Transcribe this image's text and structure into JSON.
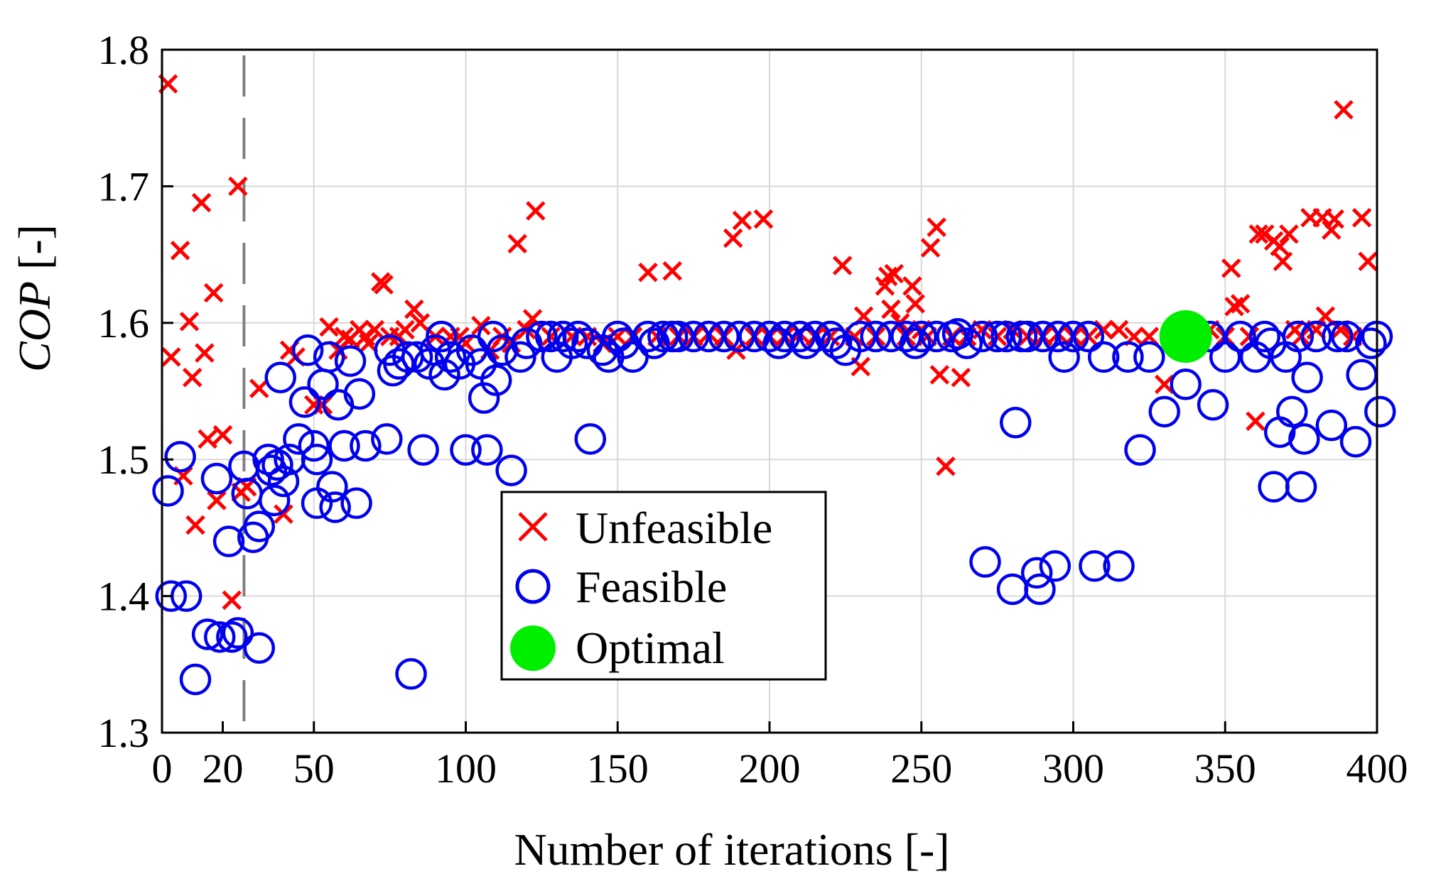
{
  "chart_data": {
    "type": "scatter",
    "title": "",
    "xlabel": "Number of iterations [-]",
    "ylabel_italic": "COP",
    "ylabel_suffix": " [-]",
    "xlim": [
      0,
      400
    ],
    "ylim": [
      1.3,
      1.8
    ],
    "xticks": [
      0,
      20,
      50,
      100,
      150,
      200,
      250,
      300,
      350,
      400
    ],
    "xtick_labels": [
      "0",
      "20",
      "50",
      "100",
      "150",
      "200",
      "250",
      "300",
      "350",
      "400"
    ],
    "yticks": [
      1.3,
      1.4,
      1.5,
      1.6,
      1.7,
      1.8
    ],
    "ytick_labels": [
      "1.3",
      "1.4",
      "1.5",
      "1.6",
      "1.7",
      "1.8"
    ],
    "grid": true,
    "vline_x": 27,
    "legend_position": "center",
    "colors": {
      "unfeasible": "#ff0000",
      "feasible": "#0000ee",
      "optimal": "#00ee00",
      "vline": "#808080",
      "grid": "#d9d9d9"
    },
    "series": [
      {
        "name": "Unfeasible",
        "marker": "x",
        "points": [
          [
            2,
            1.775
          ],
          [
            3,
            1.575
          ],
          [
            6,
            1.653
          ],
          [
            7,
            1.488
          ],
          [
            9,
            1.601
          ],
          [
            10,
            1.56
          ],
          [
            11,
            1.452
          ],
          [
            13,
            1.688
          ],
          [
            14,
            1.578
          ],
          [
            15,
            1.515
          ],
          [
            17,
            1.622
          ],
          [
            18,
            1.47
          ],
          [
            20,
            1.518
          ],
          [
            23,
            1.397
          ],
          [
            25,
            1.7
          ],
          [
            26,
            1.476
          ],
          [
            28,
            1.48
          ],
          [
            32,
            1.552
          ],
          [
            40,
            1.46
          ],
          [
            42,
            1.58
          ],
          [
            44,
            1.575
          ],
          [
            50,
            1.54
          ],
          [
            53,
            1.54
          ],
          [
            55,
            1.597
          ],
          [
            58,
            1.58
          ],
          [
            60,
            1.59
          ],
          [
            62,
            1.588
          ],
          [
            65,
            1.595
          ],
          [
            67,
            1.59
          ],
          [
            68,
            1.585
          ],
          [
            70,
            1.595
          ],
          [
            72,
            1.63
          ],
          [
            73,
            1.628
          ],
          [
            75,
            1.59
          ],
          [
            78,
            1.59
          ],
          [
            80,
            1.595
          ],
          [
            83,
            1.61
          ],
          [
            85,
            1.6
          ],
          [
            90,
            1.59
          ],
          [
            95,
            1.59
          ],
          [
            98,
            1.59
          ],
          [
            100,
            1.585
          ],
          [
            105,
            1.598
          ],
          [
            108,
            1.58
          ],
          [
            112,
            1.59
          ],
          [
            115,
            1.585
          ],
          [
            117,
            1.658
          ],
          [
            120,
            1.595
          ],
          [
            122,
            1.603
          ],
          [
            123,
            1.682
          ],
          [
            128,
            1.59
          ],
          [
            135,
            1.59
          ],
          [
            140,
            1.59
          ],
          [
            145,
            1.585
          ],
          [
            150,
            1.59
          ],
          [
            155,
            1.59
          ],
          [
            160,
            1.637
          ],
          [
            163,
            1.59
          ],
          [
            168,
            1.638
          ],
          [
            170,
            1.59
          ],
          [
            175,
            1.59
          ],
          [
            180,
            1.592
          ],
          [
            185,
            1.59
          ],
          [
            188,
            1.662
          ],
          [
            189,
            1.58
          ],
          [
            191,
            1.675
          ],
          [
            195,
            1.59
          ],
          [
            198,
            1.676
          ],
          [
            200,
            1.59
          ],
          [
            205,
            1.59
          ],
          [
            210,
            1.592
          ],
          [
            215,
            1.59
          ],
          [
            220,
            1.59
          ],
          [
            224,
            1.642
          ],
          [
            228,
            1.59
          ],
          [
            230,
            1.568
          ],
          [
            231,
            1.605
          ],
          [
            235,
            1.59
          ],
          [
            238,
            1.627
          ],
          [
            239,
            1.634
          ],
          [
            240,
            1.61
          ],
          [
            241,
            1.636
          ],
          [
            243,
            1.6
          ],
          [
            245,
            1.59
          ],
          [
            247,
            1.627
          ],
          [
            248,
            1.614
          ],
          [
            250,
            1.595
          ],
          [
            252,
            1.59
          ],
          [
            253,
            1.655
          ],
          [
            255,
            1.67
          ],
          [
            256,
            1.562
          ],
          [
            258,
            1.495
          ],
          [
            260,
            1.59
          ],
          [
            263,
            1.56
          ],
          [
            265,
            1.59
          ],
          [
            270,
            1.595
          ],
          [
            275,
            1.59
          ],
          [
            280,
            1.595
          ],
          [
            285,
            1.59
          ],
          [
            290,
            1.59
          ],
          [
            295,
            1.592
          ],
          [
            300,
            1.59
          ],
          [
            305,
            1.59
          ],
          [
            310,
            1.595
          ],
          [
            315,
            1.595
          ],
          [
            320,
            1.59
          ],
          [
            325,
            1.59
          ],
          [
            330,
            1.555
          ],
          [
            335,
            1.59
          ],
          [
            340,
            1.59
          ],
          [
            345,
            1.595
          ],
          [
            350,
            1.59
          ],
          [
            352,
            1.64
          ],
          [
            353,
            1.612
          ],
          [
            355,
            1.614
          ],
          [
            358,
            1.59
          ],
          [
            360,
            1.528
          ],
          [
            361,
            1.665
          ],
          [
            363,
            1.665
          ],
          [
            366,
            1.66
          ],
          [
            368,
            1.656
          ],
          [
            369,
            1.645
          ],
          [
            371,
            1.665
          ],
          [
            373,
            1.595
          ],
          [
            375,
            1.59
          ],
          [
            378,
            1.677
          ],
          [
            380,
            1.595
          ],
          [
            382,
            1.677
          ],
          [
            383,
            1.605
          ],
          [
            385,
            1.668
          ],
          [
            386,
            1.676
          ],
          [
            388,
            1.595
          ],
          [
            389,
            1.756
          ],
          [
            392,
            1.59
          ],
          [
            395,
            1.677
          ],
          [
            397,
            1.645
          ]
        ]
      },
      {
        "name": "Feasible",
        "marker": "o",
        "points": [
          [
            2,
            1.477
          ],
          [
            3,
            1.4
          ],
          [
            6,
            1.502
          ],
          [
            8,
            1.4
          ],
          [
            11,
            1.339
          ],
          [
            15,
            1.372
          ],
          [
            18,
            1.486
          ],
          [
            19,
            1.37
          ],
          [
            22,
            1.44
          ],
          [
            23,
            1.37
          ],
          [
            25,
            1.373
          ],
          [
            27,
            1.495
          ],
          [
            28,
            1.475
          ],
          [
            30,
            1.443
          ],
          [
            32,
            1.451
          ],
          [
            32,
            1.362
          ],
          [
            35,
            1.5
          ],
          [
            36,
            1.492
          ],
          [
            37,
            1.47
          ],
          [
            38,
            1.496
          ],
          [
            39,
            1.56
          ],
          [
            40,
            1.484
          ],
          [
            42,
            1.5
          ],
          [
            45,
            1.515
          ],
          [
            47,
            1.542
          ],
          [
            48,
            1.58
          ],
          [
            50,
            1.51
          ],
          [
            51,
            1.5
          ],
          [
            51,
            1.468
          ],
          [
            53,
            1.555
          ],
          [
            55,
            1.575
          ],
          [
            56,
            1.48
          ],
          [
            57,
            1.465
          ],
          [
            58,
            1.54
          ],
          [
            60,
            1.51
          ],
          [
            62,
            1.572
          ],
          [
            64,
            1.468
          ],
          [
            65,
            1.548
          ],
          [
            67,
            1.51
          ],
          [
            74,
            1.515
          ],
          [
            75,
            1.58
          ],
          [
            76,
            1.565
          ],
          [
            78,
            1.57
          ],
          [
            81,
            1.575
          ],
          [
            82,
            1.343
          ],
          [
            84,
            1.575
          ],
          [
            86,
            1.507
          ],
          [
            88,
            1.57
          ],
          [
            90,
            1.58
          ],
          [
            92,
            1.59
          ],
          [
            93,
            1.562
          ],
          [
            95,
            1.575
          ],
          [
            98,
            1.57
          ],
          [
            100,
            1.507
          ],
          [
            102,
            1.58
          ],
          [
            105,
            1.57
          ],
          [
            106,
            1.545
          ],
          [
            107,
            1.507
          ],
          [
            109,
            1.59
          ],
          [
            110,
            1.558
          ],
          [
            112,
            1.58
          ],
          [
            115,
            1.492
          ],
          [
            118,
            1.575
          ],
          [
            120,
            1.585
          ],
          [
            125,
            1.59
          ],
          [
            128,
            1.59
          ],
          [
            130,
            1.575
          ],
          [
            132,
            1.59
          ],
          [
            135,
            1.585
          ],
          [
            137,
            1.59
          ],
          [
            140,
            1.585
          ],
          [
            141,
            1.515
          ],
          [
            145,
            1.58
          ],
          [
            147,
            1.575
          ],
          [
            150,
            1.59
          ],
          [
            152,
            1.585
          ],
          [
            155,
            1.575
          ],
          [
            160,
            1.59
          ],
          [
            162,
            1.585
          ],
          [
            165,
            1.59
          ],
          [
            168,
            1.59
          ],
          [
            170,
            1.59
          ],
          [
            175,
            1.59
          ],
          [
            180,
            1.59
          ],
          [
            185,
            1.59
          ],
          [
            190,
            1.59
          ],
          [
            195,
            1.59
          ],
          [
            200,
            1.59
          ],
          [
            203,
            1.585
          ],
          [
            205,
            1.59
          ],
          [
            210,
            1.59
          ],
          [
            212,
            1.585
          ],
          [
            215,
            1.59
          ],
          [
            220,
            1.59
          ],
          [
            222,
            1.585
          ],
          [
            225,
            1.58
          ],
          [
            230,
            1.59
          ],
          [
            235,
            1.59
          ],
          [
            240,
            1.59
          ],
          [
            245,
            1.59
          ],
          [
            248,
            1.585
          ],
          [
            250,
            1.59
          ],
          [
            255,
            1.59
          ],
          [
            260,
            1.59
          ],
          [
            262,
            1.592
          ],
          [
            265,
            1.585
          ],
          [
            270,
            1.59
          ],
          [
            271,
            1.425
          ],
          [
            275,
            1.59
          ],
          [
            278,
            1.59
          ],
          [
            280,
            1.405
          ],
          [
            281,
            1.527
          ],
          [
            283,
            1.59
          ],
          [
            285,
            1.59
          ],
          [
            288,
            1.417
          ],
          [
            289,
            1.405
          ],
          [
            290,
            1.59
          ],
          [
            294,
            1.422
          ],
          [
            295,
            1.59
          ],
          [
            297,
            1.575
          ],
          [
            300,
            1.59
          ],
          [
            305,
            1.59
          ],
          [
            307,
            1.422
          ],
          [
            310,
            1.575
          ],
          [
            315,
            1.422
          ],
          [
            318,
            1.575
          ],
          [
            322,
            1.507
          ],
          [
            325,
            1.575
          ],
          [
            330,
            1.535
          ],
          [
            336,
            1.59
          ],
          [
            337,
            1.555
          ],
          [
            340,
            1.59
          ],
          [
            345,
            1.59
          ],
          [
            346,
            1.54
          ],
          [
            350,
            1.575
          ],
          [
            355,
            1.59
          ],
          [
            360,
            1.575
          ],
          [
            363,
            1.59
          ],
          [
            365,
            1.585
          ],
          [
            366,
            1.48
          ],
          [
            368,
            1.52
          ],
          [
            370,
            1.575
          ],
          [
            372,
            1.535
          ],
          [
            374,
            1.59
          ],
          [
            375,
            1.48
          ],
          [
            376,
            1.515
          ],
          [
            377,
            1.56
          ],
          [
            380,
            1.59
          ],
          [
            385,
            1.525
          ],
          [
            387,
            1.59
          ],
          [
            390,
            1.59
          ],
          [
            393,
            1.513
          ],
          [
            395,
            1.562
          ],
          [
            398,
            1.585
          ],
          [
            400,
            1.59
          ],
          [
            401,
            1.535
          ]
        ]
      },
      {
        "name": "Optimal",
        "marker": "filled-circle",
        "points": [
          [
            337,
            1.59
          ]
        ]
      }
    ]
  }
}
